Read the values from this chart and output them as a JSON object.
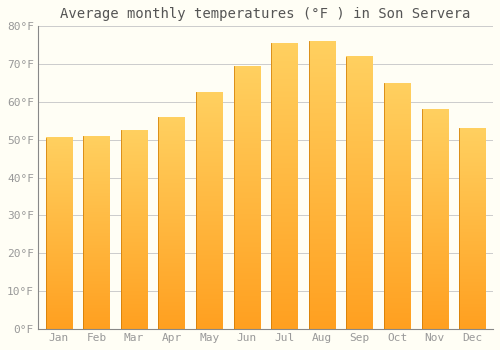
{
  "title": "Average monthly temperatures (°F ) in Son Servera",
  "months": [
    "Jan",
    "Feb",
    "Mar",
    "Apr",
    "May",
    "Jun",
    "Jul",
    "Aug",
    "Sep",
    "Oct",
    "Nov",
    "Dec"
  ],
  "values": [
    50.5,
    51.0,
    52.5,
    56.0,
    62.5,
    69.5,
    75.5,
    76.0,
    72.0,
    65.0,
    58.0,
    53.0
  ],
  "bar_color_bottom": "#FFA020",
  "bar_color_top": "#FFD060",
  "ylim": [
    0,
    80
  ],
  "yticks": [
    0,
    10,
    20,
    30,
    40,
    50,
    60,
    70,
    80
  ],
  "ytick_labels": [
    "0°F",
    "10°F",
    "20°F",
    "30°F",
    "40°F",
    "50°F",
    "60°F",
    "70°F",
    "80°F"
  ],
  "background_color": "#FFFEF5",
  "grid_color": "#CCCCCC",
  "title_fontsize": 10,
  "tick_fontsize": 8,
  "title_color": "#555555",
  "tick_color": "#999999",
  "bar_width": 0.7
}
